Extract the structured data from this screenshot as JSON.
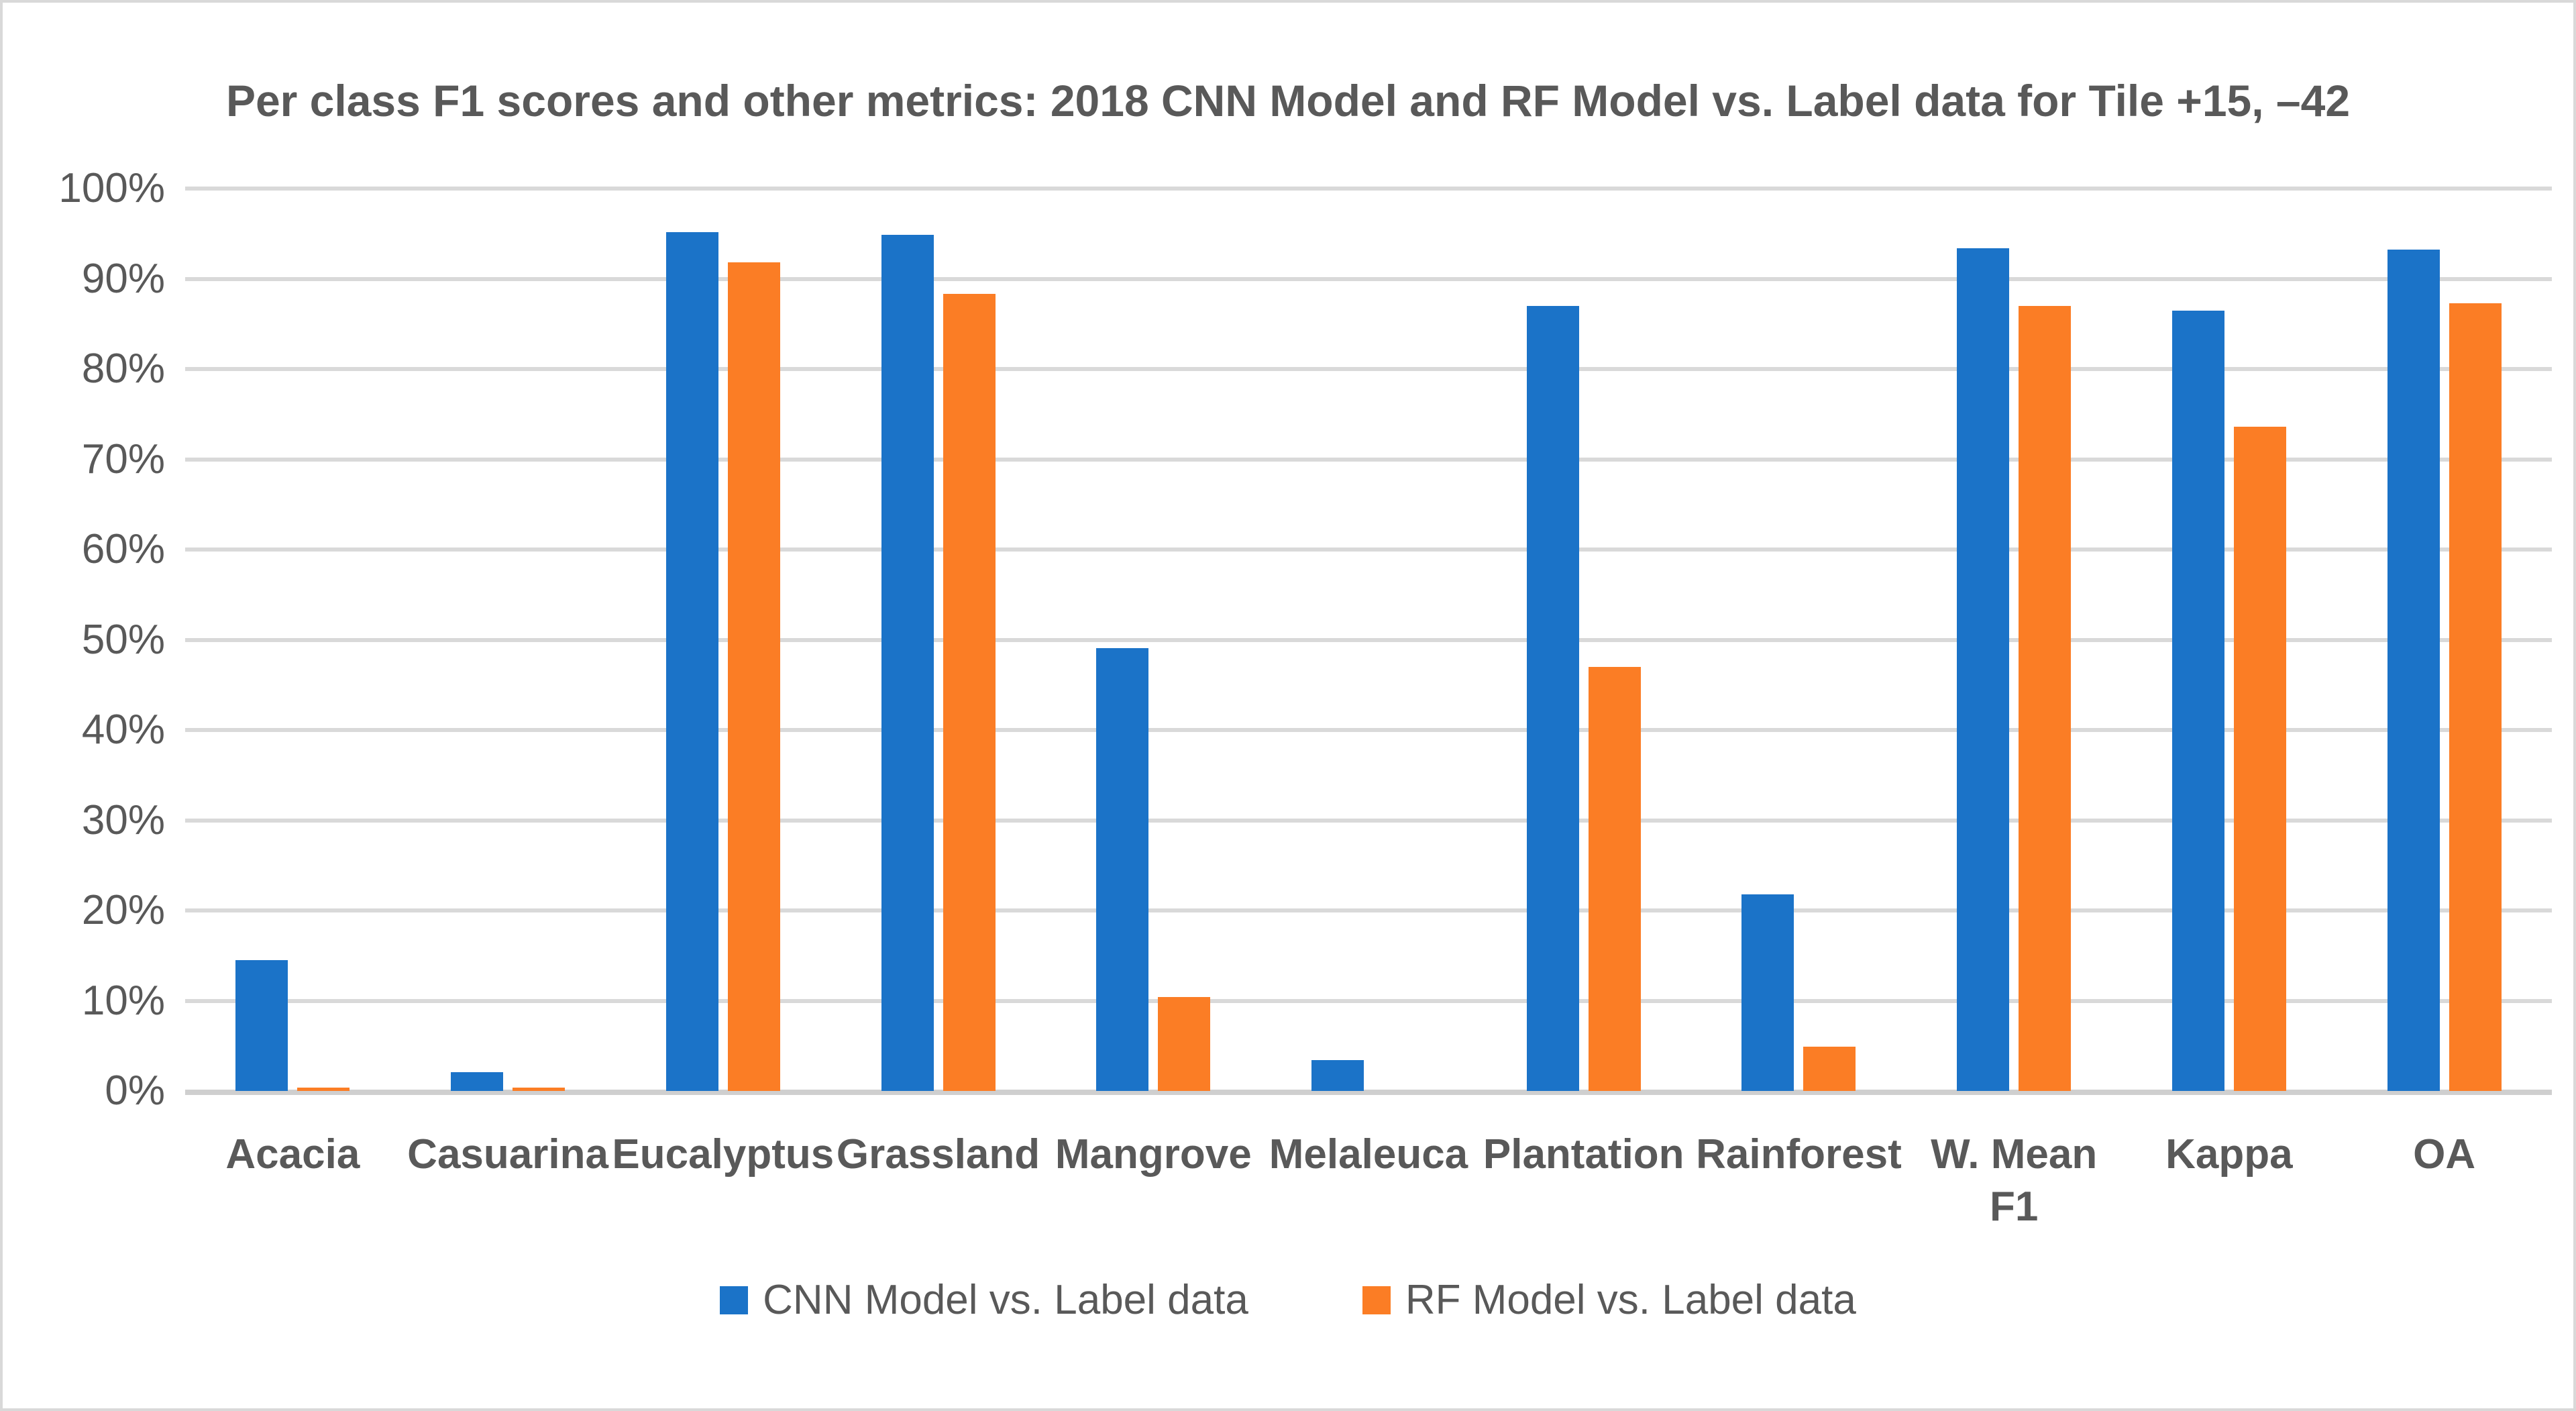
{
  "chart_data": {
    "type": "bar",
    "title": "Per class F1 scores and other metrics: 2018 CNN Model and RF Model vs. Label data for Tile +15, –42",
    "categories": [
      "Acacia",
      "Casuarina",
      "Eucalyptus",
      "Grassland",
      "Mangrove",
      "Melaleuca",
      "Plantation",
      "Rainforest",
      "W. Mean\nF1",
      "Kappa",
      "OA"
    ],
    "series": [
      {
        "name": "CNN Model vs. Label data",
        "color": "#1B73C8",
        "values": [
          14.5,
          2.1,
          95.2,
          94.9,
          49.1,
          3.4,
          87.0,
          21.8,
          93.4,
          86.5,
          93.2
        ]
      },
      {
        "name": "RF Model vs. Label data",
        "color": "#FB7D25",
        "values": [
          0.4,
          0.4,
          91.8,
          88.3,
          10.4,
          0,
          47.0,
          4.9,
          87.0,
          73.6,
          87.3
        ]
      }
    ],
    "xlabel": "",
    "ylabel": "",
    "ylim": [
      0,
      100
    ],
    "ytick_labels": [
      "0%",
      "10%",
      "20%",
      "30%",
      "40%",
      "50%",
      "60%",
      "70%",
      "80%",
      "90%",
      "100%"
    ],
    "grid": true,
    "legend_position": "bottom"
  },
  "colors": {
    "gridline": "#D9D9D9",
    "axis_line": "#CFCFCF",
    "text": "#595959",
    "border": "#D9D9D9",
    "background": "#FFFFFF"
  }
}
